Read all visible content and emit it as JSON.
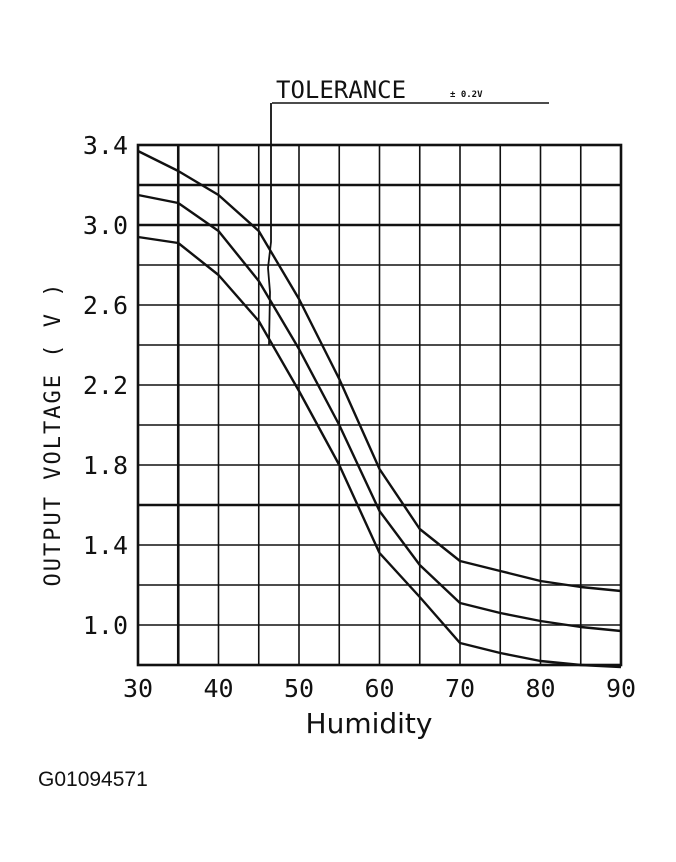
{
  "chart_data": {
    "type": "line",
    "xlabel": "Humidity",
    "ylabel": "OUTPUT VOLTAGE ( V )",
    "xlim": [
      30,
      90
    ],
    "ylim": [
      0.8,
      3.4
    ],
    "x_ticks": [
      30,
      40,
      50,
      60,
      70,
      80,
      90
    ],
    "y_ticks": [
      "3.4",
      "3.0",
      "2.6",
      "2.2",
      "1.8",
      "1.4",
      "1.0"
    ],
    "grid": true,
    "annotation": {
      "label": "TOLERANCE",
      "value": "± 0.2V"
    },
    "series": [
      {
        "x": [
          30,
          35,
          40,
          45,
          50,
          55,
          60,
          65,
          70,
          75,
          80,
          85,
          90
        ],
        "y": [
          3.37,
          3.27,
          3.15,
          2.97,
          2.63,
          2.23,
          1.78,
          1.48,
          1.32,
          1.27,
          1.22,
          1.19,
          1.17
        ]
      },
      {
        "x": [
          30,
          35,
          40,
          45,
          50,
          55,
          60,
          65,
          70,
          75,
          80,
          85,
          90
        ],
        "y": [
          3.15,
          3.11,
          2.97,
          2.72,
          2.38,
          2.0,
          1.57,
          1.3,
          1.11,
          1.06,
          1.02,
          0.99,
          0.97
        ]
      },
      {
        "x": [
          30,
          35,
          40,
          45,
          50,
          55,
          60,
          65,
          70,
          75,
          80,
          85,
          90
        ],
        "y": [
          2.94,
          2.91,
          2.75,
          2.52,
          2.17,
          1.8,
          1.36,
          1.14,
          0.91,
          0.86,
          0.82,
          0.8,
          0.79
        ]
      }
    ]
  },
  "figure_id": "G01094571"
}
